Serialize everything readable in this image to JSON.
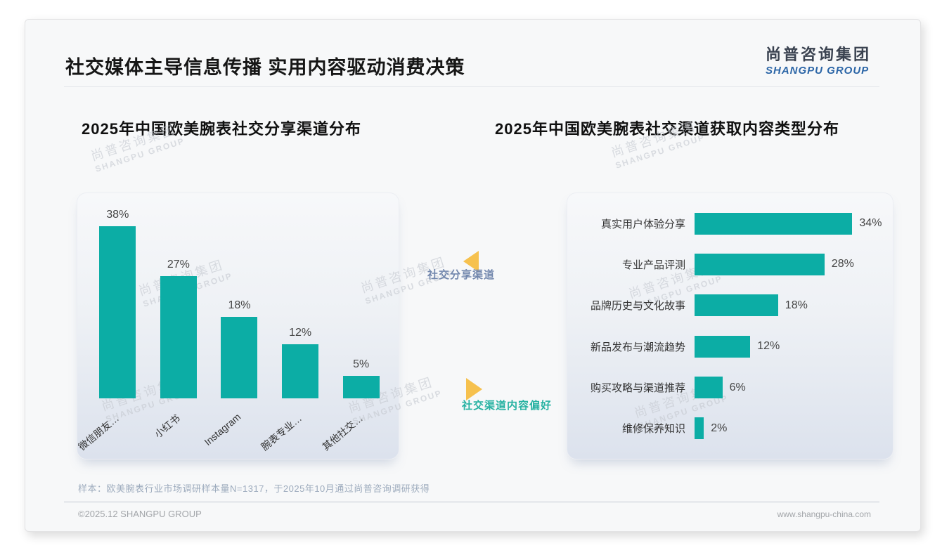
{
  "page": {
    "title": "社交媒体主导信息传播 实用内容驱动消费决策",
    "logo": {
      "cn": "尚普咨询集团",
      "en": "SHANGPU GROUP"
    },
    "footer_note": "样本：欧美腕表行业市场调研样本量N=1317，于2025年10月通过尚普咨询调研获得",
    "copyright": "©2025.12 SHANGPU GROUP",
    "website": "www.shangpu-china.com",
    "watermark": {
      "line1": "尚普咨询集团",
      "line2": "SHANGPU GROUP"
    }
  },
  "annotations": {
    "share_channel_label": "社交分享渠道",
    "content_preference_label": "社交渠道内容偏好"
  },
  "colors": {
    "teal": "#0cada5",
    "accent_yellow": "#f6c14e",
    "annotation_blue": "#7287ad",
    "annotation_teal": "#27b2a2"
  },
  "chart_data": [
    {
      "type": "bar",
      "orientation": "vertical",
      "title": "2025年中国欧美腕表社交分享渠道分布",
      "categories": [
        "微信朋友…",
        "小红书",
        "Instagram",
        "腕表专业…",
        "其他社交…"
      ],
      "values": [
        38,
        27,
        18,
        12,
        5
      ],
      "data_labels": [
        "38%",
        "27%",
        "18%",
        "12%",
        "5%"
      ],
      "unit": "%",
      "ylim": [
        0,
        40
      ],
      "grid": false,
      "legend": false
    },
    {
      "type": "bar",
      "orientation": "horizontal",
      "title": "2025年中国欧美腕表社交渠道获取内容类型分布",
      "categories": [
        "真实用户体验分享",
        "专业产品评测",
        "品牌历史与文化故事",
        "新品发布与潮流趋势",
        "购买攻略与渠道推荐",
        "维修保养知识"
      ],
      "values": [
        34,
        28,
        18,
        12,
        6,
        2
      ],
      "data_labels": [
        "34%",
        "28%",
        "18%",
        "12%",
        "6%",
        "2%"
      ],
      "unit": "%",
      "xlim": [
        0,
        36
      ],
      "grid": false,
      "legend": false
    }
  ]
}
